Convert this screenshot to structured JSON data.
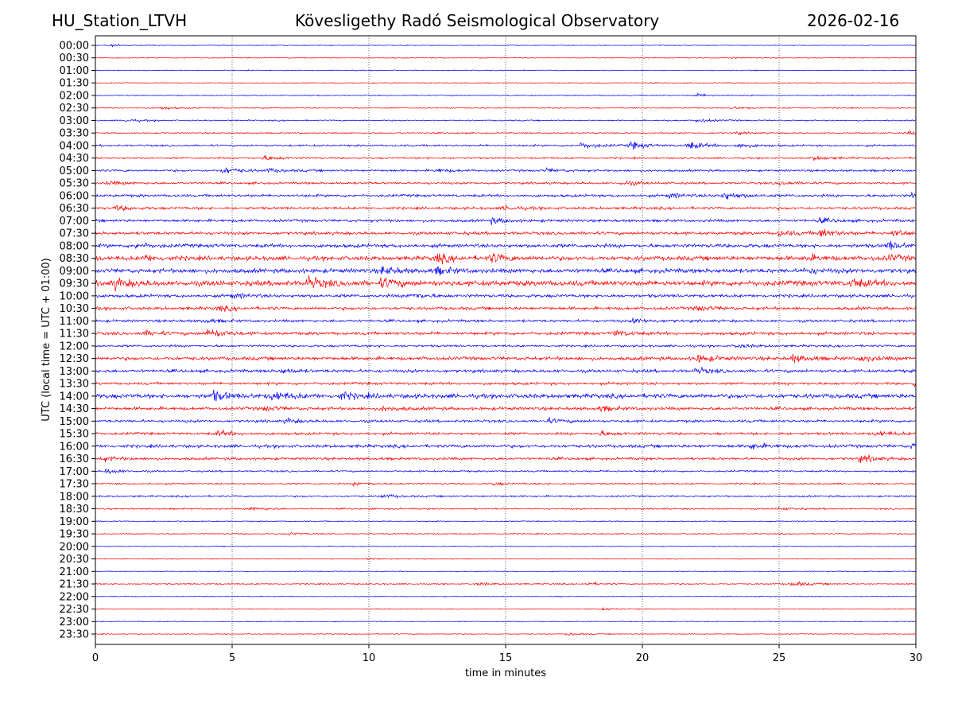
{
  "header": {
    "station": "HU_Station_LTVH",
    "observatory": "Kövesligethy Radó Seismological Observatory",
    "date": "2026-02-16"
  },
  "chart_data": {
    "type": "line",
    "subtype": "helicorder",
    "xlabel": "time in minutes",
    "ylabel": "UTC (local time = UTC + 01:00)",
    "xlim": [
      0,
      30
    ],
    "xticks": [
      0,
      5,
      10,
      15,
      20,
      25,
      30
    ],
    "grid": "vertical dotted at x ticks",
    "colors": [
      "#0000ff",
      "#ff0000"
    ],
    "rows": [
      {
        "label": "00:00",
        "noise": 0.1,
        "events": [
          [
            0.5,
            0.25
          ]
        ]
      },
      {
        "label": "00:30",
        "noise": 0.1,
        "events": [
          [
            23.2,
            0.2
          ]
        ]
      },
      {
        "label": "01:00",
        "noise": 0.1,
        "events": []
      },
      {
        "label": "01:30",
        "noise": 0.1,
        "events": []
      },
      {
        "label": "02:00",
        "noise": 0.12,
        "events": [
          [
            22,
            0.35
          ]
        ]
      },
      {
        "label": "02:30",
        "noise": 0.12,
        "events": [
          [
            2.4,
            0.3
          ],
          [
            23.3,
            0.3
          ]
        ]
      },
      {
        "label": "03:00",
        "noise": 0.15,
        "events": [
          [
            1.1,
            0.3
          ],
          [
            22,
            0.45
          ]
        ]
      },
      {
        "label": "03:30",
        "noise": 0.15,
        "events": [
          [
            23.4,
            0.3
          ],
          [
            29.7,
            0.35
          ]
        ]
      },
      {
        "label": "04:00",
        "noise": 0.22,
        "events": [
          [
            17.8,
            0.7
          ],
          [
            19.6,
            0.8
          ],
          [
            21.7,
            0.9
          ],
          [
            23.5,
            0.5
          ]
        ]
      },
      {
        "label": "04:30",
        "noise": 0.2,
        "events": [
          [
            6.2,
            0.5
          ],
          [
            26.3,
            0.5
          ]
        ]
      },
      {
        "label": "05:00",
        "noise": 0.25,
        "events": [
          [
            4.7,
            0.7
          ],
          [
            6.3,
            0.4
          ],
          [
            12.5,
            0.35
          ],
          [
            16.5,
            0.4
          ]
        ]
      },
      {
        "label": "05:30",
        "noise": 0.25,
        "events": [
          [
            0.5,
            0.4
          ],
          [
            19.3,
            0.5
          ],
          [
            25,
            0.4
          ]
        ]
      },
      {
        "label": "06:00",
        "noise": 0.3,
        "events": [
          [
            23,
            0.9
          ],
          [
            21,
            0.5
          ],
          [
            29.9,
            0.6
          ]
        ]
      },
      {
        "label": "06:30",
        "noise": 0.3,
        "events": [
          [
            0.8,
            0.5
          ],
          [
            15,
            0.5
          ]
        ]
      },
      {
        "label": "07:00",
        "noise": 0.3,
        "events": [
          [
            14.5,
            0.6
          ],
          [
            26.5,
            0.5
          ]
        ]
      },
      {
        "label": "07:30",
        "noise": 0.35,
        "events": [
          [
            26.5,
            1.0
          ],
          [
            25,
            0.6
          ],
          [
            29.2,
            0.8
          ]
        ]
      },
      {
        "label": "08:00",
        "noise": 0.4,
        "events": [
          [
            1.5,
            0.5
          ],
          [
            29,
            0.9
          ]
        ]
      },
      {
        "label": "08:30",
        "noise": 0.5,
        "events": [
          [
            1.8,
            0.6
          ],
          [
            12.5,
            0.9
          ],
          [
            14.5,
            0.9
          ],
          [
            26,
            0.6
          ],
          [
            29,
            0.6
          ]
        ]
      },
      {
        "label": "09:00",
        "noise": 0.5,
        "events": [
          [
            10.5,
            0.8
          ],
          [
            12.5,
            0.7
          ],
          [
            26,
            0.5
          ]
        ]
      },
      {
        "label": "09:30",
        "noise": 0.6,
        "events": [
          [
            0.7,
            1.0
          ],
          [
            7.8,
            1.3
          ],
          [
            10.5,
            1.0
          ],
          [
            27.7,
            0.9
          ]
        ]
      },
      {
        "label": "10:00",
        "noise": 0.35,
        "events": [
          [
            5,
            0.5
          ],
          [
            11.5,
            0.6
          ]
        ]
      },
      {
        "label": "10:30",
        "noise": 0.35,
        "events": [
          [
            4.5,
            0.5
          ],
          [
            22,
            0.6
          ]
        ]
      },
      {
        "label": "11:00",
        "noise": 0.3,
        "events": [
          [
            4,
            0.4
          ],
          [
            19.7,
            0.5
          ]
        ]
      },
      {
        "label": "11:30",
        "noise": 0.35,
        "events": [
          [
            4.1,
            1.2
          ],
          [
            19,
            0.6
          ],
          [
            1.8,
            0.5
          ]
        ]
      },
      {
        "label": "12:00",
        "noise": 0.25,
        "events": [
          [
            23.5,
            0.4
          ]
        ]
      },
      {
        "label": "12:30",
        "noise": 0.4,
        "events": [
          [
            22,
            0.8
          ],
          [
            25.5,
            0.8
          ],
          [
            28,
            0.6
          ]
        ]
      },
      {
        "label": "13:00",
        "noise": 0.35,
        "events": [
          [
            6.8,
            0.5
          ],
          [
            22,
            0.6
          ]
        ]
      },
      {
        "label": "13:30",
        "noise": 0.3,
        "events": [
          [
            29.9,
            0.5
          ]
        ]
      },
      {
        "label": "14:00",
        "noise": 0.5,
        "events": [
          [
            4.3,
            1.0
          ],
          [
            6.5,
            1.0
          ],
          [
            9,
            0.7
          ]
        ]
      },
      {
        "label": "14:30",
        "noise": 0.35,
        "events": [
          [
            6.2,
            0.5
          ],
          [
            10.5,
            0.5
          ],
          [
            18.5,
            0.5
          ]
        ]
      },
      {
        "label": "15:00",
        "noise": 0.3,
        "events": [
          [
            7,
            0.5
          ],
          [
            16.5,
            0.5
          ]
        ]
      },
      {
        "label": "15:30",
        "noise": 0.3,
        "events": [
          [
            4.5,
            0.6
          ],
          [
            18.5,
            0.5
          ],
          [
            28.6,
            0.5
          ]
        ]
      },
      {
        "label": "16:00",
        "noise": 0.35,
        "events": [
          [
            24,
            0.6
          ],
          [
            29.9,
            0.6
          ]
        ]
      },
      {
        "label": "16:30",
        "noise": 0.3,
        "events": [
          [
            0.3,
            0.5
          ],
          [
            28,
            0.8
          ]
        ]
      },
      {
        "label": "17:00",
        "noise": 0.2,
        "events": [
          [
            0.4,
            0.6
          ]
        ]
      },
      {
        "label": "17:30",
        "noise": 0.18,
        "events": [
          [
            9.5,
            0.4
          ],
          [
            14.6,
            0.3
          ]
        ]
      },
      {
        "label": "18:00",
        "noise": 0.2,
        "events": [
          [
            10.5,
            0.4
          ]
        ]
      },
      {
        "label": "18:30",
        "noise": 0.18,
        "events": [
          [
            5.7,
            0.4
          ],
          [
            25,
            0.3
          ]
        ]
      },
      {
        "label": "19:00",
        "noise": 0.12,
        "events": []
      },
      {
        "label": "19:30",
        "noise": 0.12,
        "events": [
          [
            7.1,
            0.3
          ]
        ]
      },
      {
        "label": "20:00",
        "noise": 0.1,
        "events": []
      },
      {
        "label": "20:30",
        "noise": 0.1,
        "events": [
          [
            10,
            0.25
          ]
        ]
      },
      {
        "label": "21:00",
        "noise": 0.1,
        "events": []
      },
      {
        "label": "21:30",
        "noise": 0.15,
        "events": [
          [
            14,
            0.3
          ],
          [
            18,
            0.3
          ],
          [
            25.5,
            0.6
          ]
        ]
      },
      {
        "label": "22:00",
        "noise": 0.1,
        "events": []
      },
      {
        "label": "22:30",
        "noise": 0.1,
        "events": [
          [
            18.5,
            0.3
          ]
        ]
      },
      {
        "label": "23:00",
        "noise": 0.1,
        "events": []
      },
      {
        "label": "23:30",
        "noise": 0.1,
        "events": [
          [
            17.3,
            0.3
          ]
        ]
      }
    ]
  }
}
